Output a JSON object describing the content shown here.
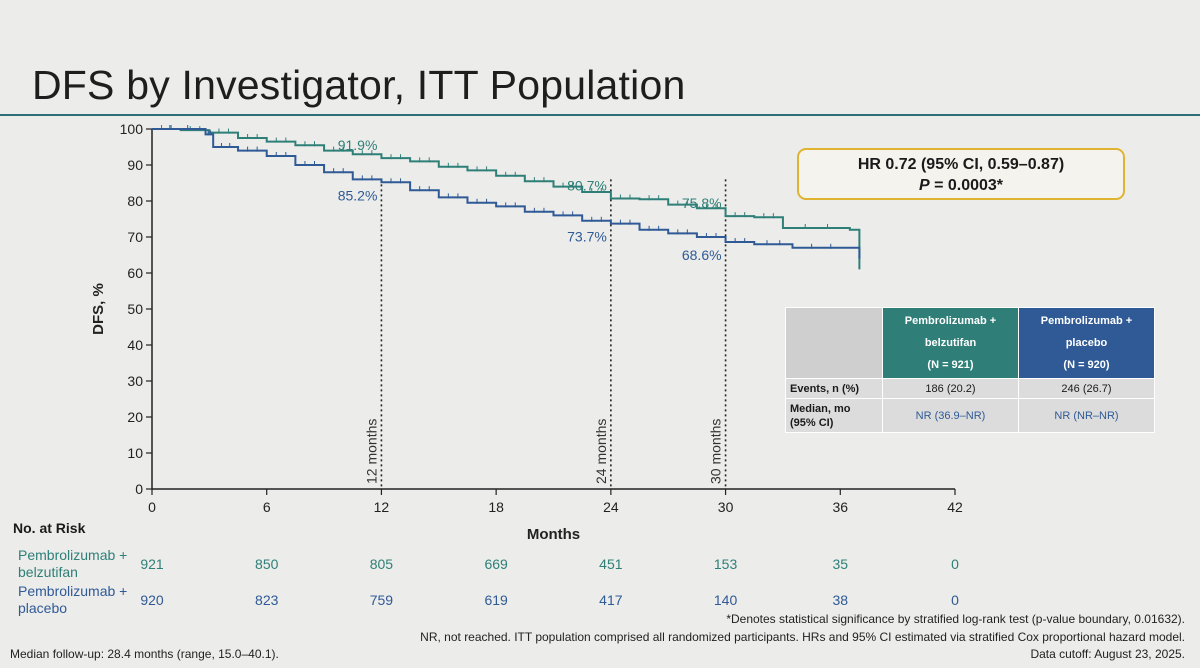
{
  "slide_title": "DFS by Investigator, ITT Population",
  "colors": {
    "green": "#2e7f78",
    "blue": "#2f5a96",
    "hr_border": "#e0b431",
    "title_rule": "#2e6e78"
  },
  "chart_data": {
    "type": "line",
    "xlabel": "Months",
    "ylabel": "DFS, %",
    "xlim": [
      0,
      42
    ],
    "ylim": [
      0,
      100
    ],
    "xticks": [
      0,
      6,
      12,
      18,
      24,
      30,
      36,
      42
    ],
    "yticks": [
      0,
      10,
      20,
      30,
      40,
      50,
      60,
      70,
      80,
      90,
      100
    ],
    "series": [
      {
        "name": "Pembrolizumab + belzutifan",
        "color": "#2e7f78",
        "steps": [
          [
            0,
            100
          ],
          [
            1.5,
            99.7
          ],
          [
            3,
            99
          ],
          [
            4.5,
            97.5
          ],
          [
            6,
            96.5
          ],
          [
            7.5,
            95.5
          ],
          [
            9,
            94
          ],
          [
            10.5,
            93
          ],
          [
            12,
            91.9
          ],
          [
            13.5,
            91
          ],
          [
            15,
            89.5
          ],
          [
            16.5,
            88.5
          ],
          [
            18,
            87
          ],
          [
            19.5,
            85.5
          ],
          [
            21,
            84
          ],
          [
            22.5,
            82.5
          ],
          [
            24,
            80.7
          ],
          [
            25.5,
            80.5
          ],
          [
            27,
            79
          ],
          [
            28.5,
            78
          ],
          [
            30,
            75.8
          ],
          [
            31.5,
            75.5
          ],
          [
            33,
            72.5
          ],
          [
            36.5,
            72
          ],
          [
            37,
            61
          ]
        ]
      },
      {
        "name": "Pembrolizumab + placebo",
        "color": "#2f5a96",
        "steps": [
          [
            0,
            100
          ],
          [
            2.8,
            98.5
          ],
          [
            3.2,
            95
          ],
          [
            4.5,
            94
          ],
          [
            6,
            92.5
          ],
          [
            7.5,
            90
          ],
          [
            9,
            88
          ],
          [
            10.5,
            86
          ],
          [
            12,
            85.2
          ],
          [
            13.5,
            83
          ],
          [
            15,
            81
          ],
          [
            16.5,
            79.5
          ],
          [
            18,
            78.5
          ],
          [
            19.5,
            77
          ],
          [
            21,
            76
          ],
          [
            22.5,
            74.5
          ],
          [
            24,
            73.7
          ],
          [
            25.5,
            72
          ],
          [
            27,
            71
          ],
          [
            28.5,
            70
          ],
          [
            30,
            68.6
          ],
          [
            31.5,
            68
          ],
          [
            33.5,
            67
          ],
          [
            36.5,
            67
          ],
          [
            37,
            64
          ]
        ]
      }
    ],
    "annotations": [
      {
        "x": 12,
        "y": 91.9,
        "text": "91.9%",
        "series": "Pembrolizumab + belzutifan"
      },
      {
        "x": 12,
        "y": 85.2,
        "text": "85.2%",
        "series": "Pembrolizumab + placebo"
      },
      {
        "x": 24,
        "y": 80.7,
        "text": "80.7%",
        "series": "Pembrolizumab + belzutifan"
      },
      {
        "x": 24,
        "y": 73.7,
        "text": "73.7%",
        "series": "Pembrolizumab + placebo"
      },
      {
        "x": 30,
        "y": 75.8,
        "text": "75.8%",
        "series": "Pembrolizumab + belzutifan"
      },
      {
        "x": 30,
        "y": 68.6,
        "text": "68.6%",
        "series": "Pembrolizumab + placebo"
      }
    ],
    "reference_lines": [
      {
        "x": 12,
        "label": "12 months"
      },
      {
        "x": 24,
        "label": "24 months"
      },
      {
        "x": 30,
        "label": "30 months"
      }
    ]
  },
  "hr_box": {
    "line1": "HR 0.72 (95% CI, 0.59–0.87)",
    "line2": "P = 0.0003*"
  },
  "stats_table": {
    "col_green": {
      "name": "Pembrolizumab + belzutifan",
      "n": "(N = 921)"
    },
    "col_blue": {
      "name": "Pembrolizumab + placebo",
      "n": "(N = 920)"
    },
    "rows": [
      {
        "label": "Events, n (%)",
        "green": "186 (20.2)",
        "blue": "246 (26.7)"
      },
      {
        "label": "Median, mo (95% CI)",
        "green": "NR (36.9–NR)",
        "blue": "NR (NR–NR)"
      }
    ]
  },
  "at_risk": {
    "title": "No. at Risk",
    "times": [
      0,
      6,
      12,
      18,
      24,
      30,
      36,
      42
    ],
    "rows": [
      {
        "label": "Pembrolizumab + belzutifan",
        "color": "#2e7f78",
        "values": [
          "921",
          "850",
          "805",
          "669",
          "451",
          "153",
          "35",
          "0"
        ]
      },
      {
        "label": "Pembrolizumab + placebo",
        "color": "#2f5a96",
        "values": [
          "920",
          "823",
          "759",
          "619",
          "417",
          "140",
          "38",
          "0"
        ]
      }
    ]
  },
  "footnotes": {
    "significance": "*Denotes statistical significance by stratified log-rank test (p-value boundary, 0.01632).",
    "nr": "NR, not reached. ITT population comprised all randomized participants. HRs and 95% CI estimated via stratified Cox proportional hazard model.",
    "followup": "Median follow-up: 28.4 months (range, 15.0–40.1).",
    "cutoff": "Data cutoff: August 23, 2025."
  }
}
